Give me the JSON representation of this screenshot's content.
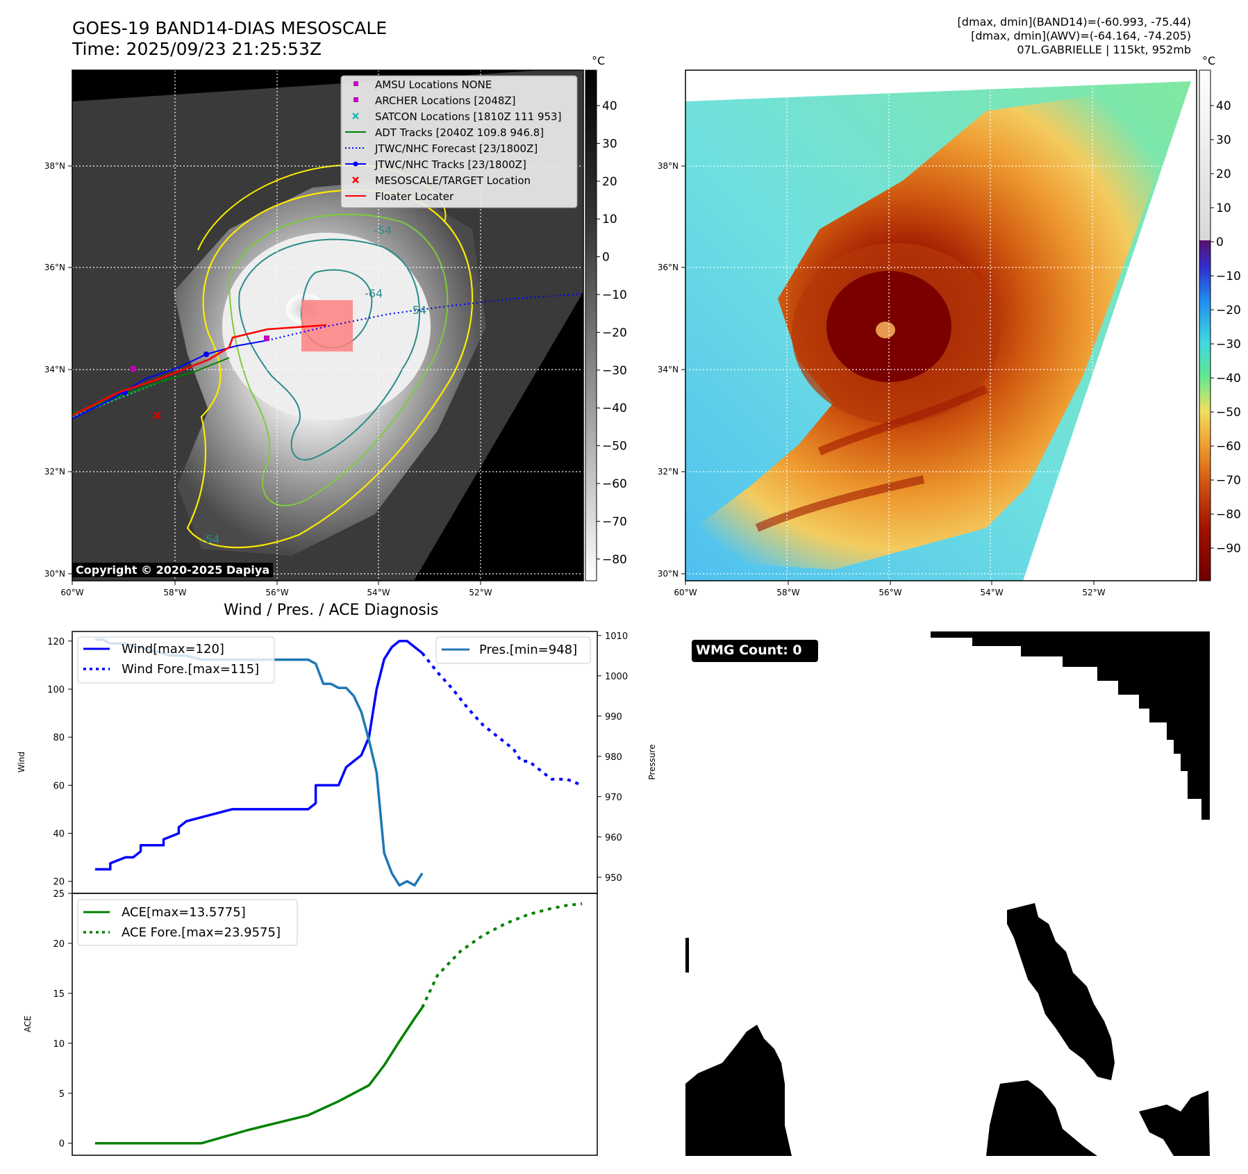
{
  "header": {
    "title_line1": "GOES-19 BAND14-DIAS MESOSCALE",
    "title_line2": "Time: 2025/09/23 21:25:53Z",
    "info_line1": "[dmax, dmin](BAND14)=(-60.993, -75.44)",
    "info_line2": "[dmax, dmin](AWV)=(-64.164, -74.205)",
    "info_line3": "07L.GABRIELLE | 115kt, 952mb"
  },
  "copyright": "Copyright © 2020-2025 Dapiya",
  "maps": {
    "lon_ticks": [
      "60°W",
      "58°W",
      "56°W",
      "54°W",
      "52°W"
    ],
    "lat_ticks": [
      "38°N",
      "36°N",
      "34°N",
      "32°N",
      "30°N"
    ],
    "unit": "°C",
    "gray_colorbar_ticks": [
      "40",
      "30",
      "20",
      "10",
      "0",
      "−10",
      "−20",
      "−30",
      "−40",
      "−50",
      "−60",
      "−70",
      "−80"
    ],
    "color_colorbar_ticks": [
      "40",
      "30",
      "20",
      "10",
      "0",
      "−10",
      "−20",
      "−30",
      "−40",
      "−50",
      "−60",
      "−70",
      "−80",
      "−90"
    ],
    "contour_labels": [
      "-54",
      "-64",
      "-54",
      "-54"
    ],
    "legend": [
      {
        "label": "AMSU Locations NONE",
        "color": "#c000c0",
        "symbol": "square"
      },
      {
        "label": "ARCHER Locations [2048Z]",
        "color": "#c000c0",
        "symbol": "square"
      },
      {
        "label": "SATCON Locations [1810Z 111 953]",
        "color": "#00b0b0",
        "symbol": "x"
      },
      {
        "label": "ADT Tracks [2040Z 109.8 946.8]",
        "color": "#008000",
        "symbol": "line"
      },
      {
        "label": "JTWC/NHC Forecast [23/1800Z]",
        "color": "#0000ff",
        "symbol": "dotted"
      },
      {
        "label": "JTWC/NHC Tracks [23/1800Z]",
        "color": "#0000ff",
        "symbol": "line-dot"
      },
      {
        "label": "MESOSCALE/TARGET Location",
        "color": "#ff0000",
        "symbol": "x"
      },
      {
        "label": "Floater Locater",
        "color": "#ff0000",
        "symbol": "line"
      }
    ]
  },
  "chart_data": [
    {
      "type": "line",
      "title": "Wind / Pres. / ACE Diagnosis",
      "ylabel": "Wind",
      "ylabel_right": "Pressure",
      "ylim": [
        15,
        124
      ],
      "ylim_right": [
        946,
        1011
      ],
      "y_ticks": [
        "120",
        "100",
        "80",
        "60",
        "40",
        "20"
      ],
      "y_ticks_right": [
        "1010",
        "1000",
        "990",
        "980",
        "970",
        "960",
        "950"
      ],
      "series": [
        {
          "name": "Wind[max=120]",
          "color": "#0000ff",
          "style": "solid",
          "x": [
            0,
            1,
            1,
            2,
            2.5,
            3,
            3,
            4.5,
            4.5,
            5.5,
            5.5,
            6,
            9,
            14,
            14.5,
            14.5,
            16,
            16.5,
            17.5,
            18,
            18.5,
            19,
            19.5,
            20,
            20.5,
            21.5
          ],
          "values": [
            25,
            25,
            27.5,
            30,
            30,
            32.5,
            35,
            35,
            37.5,
            40,
            42.5,
            45,
            50,
            50,
            52.5,
            60,
            60,
            67.5,
            72.5,
            80,
            100,
            112.5,
            117.5,
            120,
            120,
            115
          ]
        },
        {
          "name": "Wind Fore.[max=115]",
          "color": "#0000ff",
          "style": "dotted",
          "x": [
            21.5,
            22.5,
            23.5,
            24.5,
            25.5,
            26,
            26.5,
            27.5,
            28,
            28.5,
            29.5,
            30,
            31,
            32
          ],
          "values": [
            115,
            107,
            100,
            92,
            85,
            82.5,
            80,
            75,
            70,
            70,
            65,
            62.5,
            62.5,
            60
          ]
        },
        {
          "name": "Pres.[min=948]",
          "color": "#1f77b4",
          "style": "solid",
          "axis": "right",
          "x": [
            0,
            0.5,
            1,
            2,
            3,
            4,
            5,
            6,
            7,
            10,
            14,
            14.5,
            15,
            15.5,
            16,
            16.5,
            17,
            17.5,
            18,
            18.5,
            19,
            19.5,
            20,
            20.5,
            21,
            21.5
          ],
          "values": [
            1009,
            1009,
            1008,
            1008,
            1007,
            1006,
            1005,
            1005,
            1004,
            1004,
            1004,
            1003,
            998,
            998,
            997,
            997,
            995,
            991,
            984,
            976,
            956,
            951,
            948,
            949,
            948,
            951
          ]
        }
      ]
    },
    {
      "type": "line",
      "ylabel": "ACE",
      "ylim": [
        -1.2,
        25
      ],
      "y_ticks": [
        "25",
        "20",
        "15",
        "10",
        "5",
        "0"
      ],
      "series": [
        {
          "name": "ACE[max=13.5775]",
          "color": "#008000",
          "style": "solid",
          "x": [
            0,
            7,
            10,
            14,
            16,
            18,
            19,
            20,
            21,
            21.5
          ],
          "values": [
            0,
            0,
            1.3,
            2.8,
            4.2,
            5.8,
            7.8,
            10.2,
            12.5,
            13.5775
          ]
        },
        {
          "name": "ACE Fore.[max=23.9575]",
          "color": "#008000",
          "style": "dotted",
          "x": [
            21.5,
            22.5,
            24,
            25.5,
            27,
            28.5,
            30,
            31,
            32
          ],
          "values": [
            13.5775,
            16.8,
            19.2,
            20.8,
            22.0,
            22.9,
            23.5,
            23.8,
            23.9575
          ]
        }
      ]
    }
  ],
  "wmg": {
    "label": "WMG Count: 0"
  }
}
